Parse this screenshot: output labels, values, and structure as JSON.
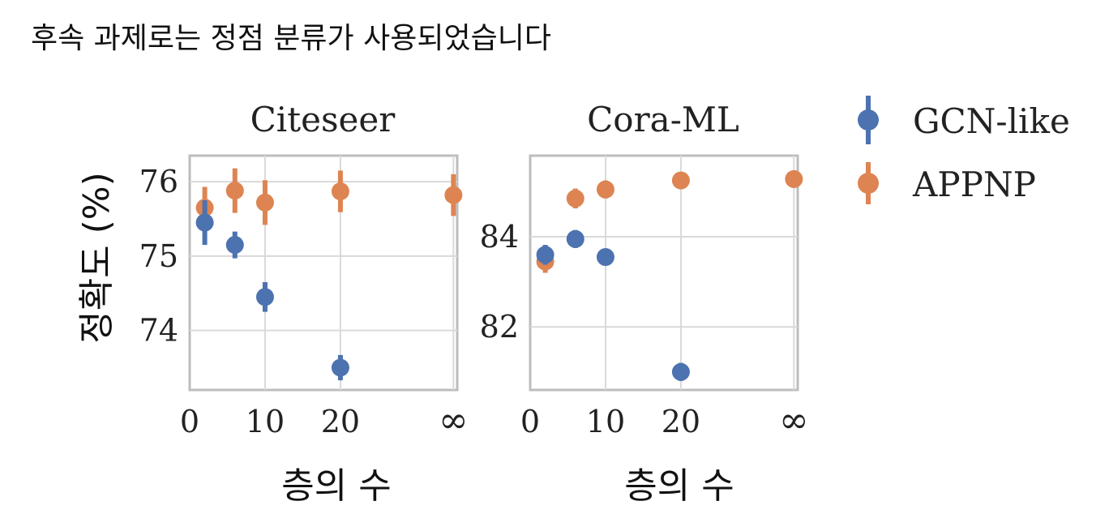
{
  "caption": "후속 과제로는 정점 분류가 사용되었습니다",
  "colors": {
    "gcn": "#4C72B0",
    "appnp": "#DD8452",
    "frame": "#BDBDBD",
    "grid": "#D9D9D9",
    "text": "#222222"
  },
  "ylabel": "정확도 (%)",
  "legend": [
    {
      "name": "GCN-like",
      "color": "#4C72B0"
    },
    {
      "name": "APPNP",
      "color": "#DD8452"
    }
  ],
  "chart_data": [
    {
      "type": "scatter",
      "title": "Citeseer",
      "xlabel": "층의 수",
      "ylabel": "정확도 (%)",
      "xticks": [
        "0",
        "10",
        "20",
        "∞"
      ],
      "yticks": [
        "74",
        "75",
        "76"
      ],
      "ylim": [
        73.2,
        76.35
      ],
      "grid": true,
      "series": [
        {
          "name": "GCN-like",
          "x": [
            "2",
            "6",
            "10",
            "20"
          ],
          "y": [
            75.45,
            75.15,
            74.45,
            73.5
          ],
          "err": [
            0.3,
            0.18,
            0.2,
            0.17
          ]
        },
        {
          "name": "APPNP",
          "x": [
            "2",
            "6",
            "10",
            "20",
            "∞"
          ],
          "y": [
            75.65,
            75.88,
            75.72,
            75.87,
            75.82
          ],
          "err": [
            0.28,
            0.3,
            0.3,
            0.28,
            0.28
          ]
        }
      ]
    },
    {
      "type": "scatter",
      "title": "Cora-ML",
      "xlabel": "층의 수",
      "ylabel": "정확도 (%)",
      "xticks": [
        "0",
        "10",
        "20",
        "∞"
      ],
      "yticks": [
        "82",
        "84"
      ],
      "ylim": [
        80.6,
        85.8
      ],
      "grid": true,
      "series": [
        {
          "name": "GCN-like",
          "x": [
            "2",
            "6",
            "10",
            "20"
          ],
          "y": [
            83.6,
            83.95,
            83.55,
            81.0
          ],
          "err": [
            0.22,
            0.2,
            0.15,
            0.2
          ]
        },
        {
          "name": "APPNP",
          "x": [
            "2",
            "6",
            "10",
            "20",
            "∞"
          ],
          "y": [
            83.45,
            84.85,
            85.05,
            85.25,
            85.28
          ],
          "err": [
            0.25,
            0.22,
            0.2,
            0.18,
            0.15
          ]
        }
      ]
    }
  ]
}
